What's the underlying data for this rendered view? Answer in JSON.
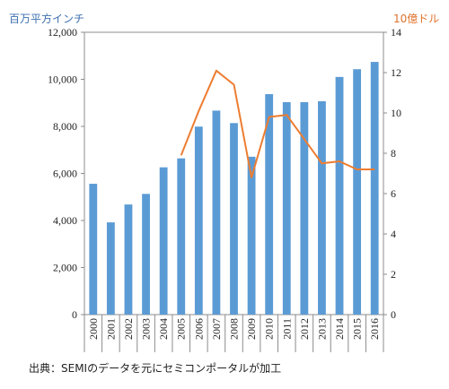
{
  "chart_data": {
    "type": "bar",
    "categories": [
      "2000",
      "2001",
      "2002",
      "2003",
      "2004",
      "2005",
      "2006",
      "2007",
      "2008",
      "2009",
      "2010",
      "2011",
      "2012",
      "2013",
      "2014",
      "2015",
      "2016"
    ],
    "series": [
      {
        "type": "bar",
        "axis": "left",
        "color": "#5b9bd5",
        "values": [
          5560,
          3920,
          4680,
          5130,
          6260,
          6640,
          7990,
          8670,
          8140,
          6710,
          9370,
          9030,
          9030,
          9070,
          10100,
          10430,
          10740
        ]
      },
      {
        "type": "line",
        "axis": "right",
        "color": "#ed7d31",
        "values": [
          null,
          null,
          null,
          null,
          null,
          7.9,
          10.1,
          12.1,
          11.4,
          6.8,
          9.8,
          9.9,
          8.7,
          7.5,
          7.6,
          7.2,
          7.2
        ]
      }
    ],
    "y_left": {
      "unit_label": "百万平方インチ",
      "min": 0,
      "max": 12000,
      "ticks": [
        "0",
        "2,000",
        "4,000",
        "6,000",
        "8,000",
        "10,000",
        "12,000"
      ]
    },
    "y_right": {
      "unit_label": "10億ドル",
      "min": 0,
      "max": 14,
      "ticks": [
        "0",
        "2",
        "4",
        "6",
        "8",
        "10",
        "12",
        "14"
      ]
    },
    "grid": false,
    "legend": "none"
  },
  "source_note": "出典：SEMIのデータを元にセミコンポータルが加工"
}
